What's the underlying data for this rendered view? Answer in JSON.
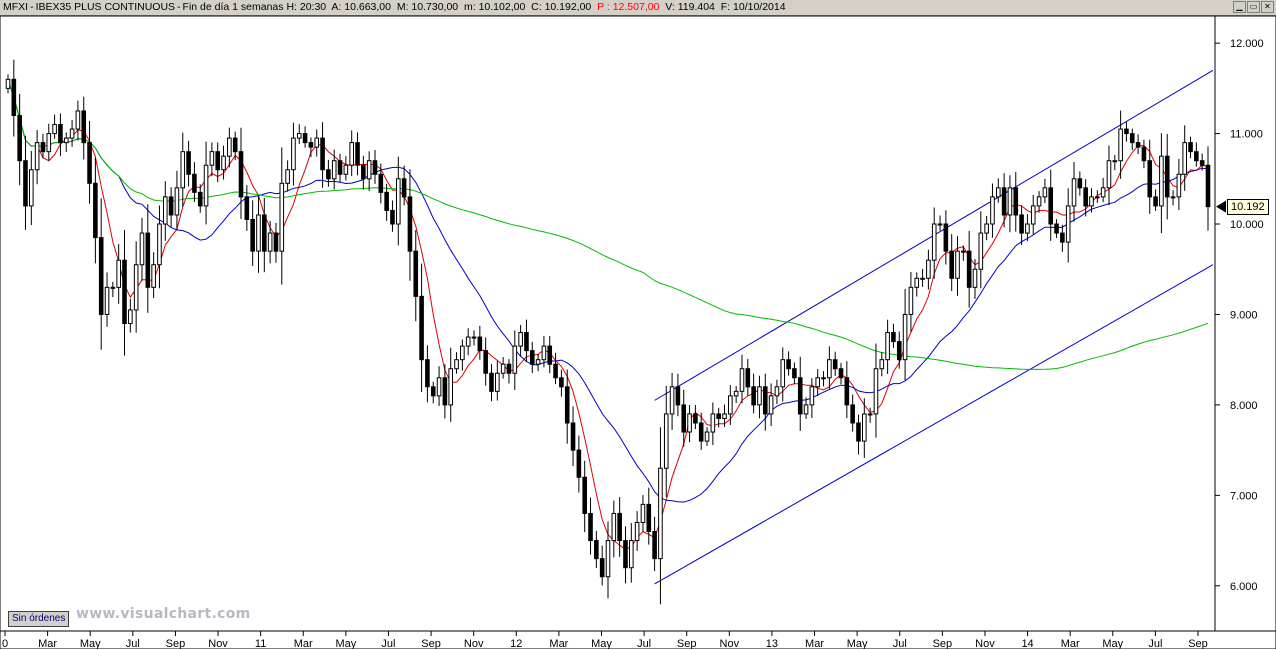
{
  "window": {
    "symbol": "MFXI",
    "name": "IBEX35 PLUS CONTINUOUS",
    "period": "Fin de día 1 semanas",
    "time_label": "H:",
    "time": "20:30",
    "open_label": "A:",
    "open": "10.663,00",
    "high_label": "M:",
    "high": "10.730,00",
    "low_label": "m:",
    "low": "10.102,00",
    "close_label": "C:",
    "close": "10.192,00",
    "prev_label": "P :",
    "prev": "12.507,00",
    "volume_label": "V:",
    "volume": "119.404",
    "date_label": "F:",
    "date": "10/10/2014"
  },
  "status_label": "Sin órdenes",
  "watermark": "www.visualchart.com",
  "last_price_label": "10.192",
  "colors": {
    "candle": "#000000",
    "ma_short": "#e00000",
    "ma_mid": "#0000cc",
    "ma_long": "#00bb00",
    "channel": "#0000cc",
    "background": "#ffffff"
  },
  "chart_data": {
    "type": "candlestick",
    "ylim": [
      5500,
      12300
    ],
    "y_ticks": [
      6000,
      7000,
      8000,
      9000,
      10000,
      11000,
      12000
    ],
    "y_tick_labels": [
      "6.000",
      "7.000",
      "8.000",
      "9.000",
      "10.000",
      "11.000",
      "12.000"
    ],
    "x_tick_labels": [
      "0",
      "Mar",
      "May",
      "Jul",
      "Sep",
      "Nov",
      "11",
      "Mar",
      "May",
      "Jul",
      "Sep",
      "Nov",
      "12",
      "Mar",
      "May",
      "Jul",
      "Sep",
      "Nov",
      "13",
      "Mar",
      "May",
      "Jul",
      "Sep",
      "Nov",
      "14",
      "Mar",
      "May",
      "Jul",
      "Sep"
    ],
    "closes": [
      11600,
      11200,
      10700,
      10200,
      10600,
      10900,
      10800,
      11000,
      11100,
      10900,
      10950,
      11050,
      11250,
      10900,
      10450,
      9850,
      9000,
      9300,
      9300,
      9600,
      8900,
      9050,
      9550,
      9900,
      9300,
      9550,
      10000,
      10300,
      10100,
      10400,
      10800,
      10550,
      10350,
      10200,
      10650,
      10800,
      10600,
      10750,
      10950,
      10800,
      10300,
      10050,
      9700,
      10100,
      9700,
      9900,
      9700,
      10450,
      10600,
      10950,
      11000,
      10900,
      10850,
      10950,
      10600,
      10500,
      10700,
      10550,
      10650,
      10900,
      10650,
      10500,
      10700,
      10550,
      10350,
      10150,
      10000,
      10500,
      10300,
      9700,
      9200,
      8500,
      8200,
      8100,
      8300,
      8000,
      8400,
      8500,
      8650,
      8750,
      8750,
      8600,
      8350,
      8150,
      8350,
      8450,
      8350,
      8650,
      8800,
      8600,
      8450,
      8500,
      8650,
      8450,
      8300,
      8200,
      7800,
      7500,
      7200,
      6800,
      6500,
      6300,
      6100,
      6500,
      6800,
      6500,
      6200,
      6500,
      6700,
      6900,
      6600,
      6300,
      7300,
      7900,
      8200,
      8000,
      7700,
      7900,
      7800,
      7600,
      7700,
      7900,
      7850,
      7900,
      8100,
      8150,
      8400,
      8200,
      8000,
      8200,
      7900,
      8100,
      8200,
      8500,
      8400,
      8300,
      7900,
      8000,
      8200,
      8300,
      8300,
      8500,
      8400,
      8300,
      8000,
      7800,
      7600,
      7900,
      7900,
      8400,
      8500,
      8800,
      8700,
      8500,
      9000,
      9300,
      9400,
      9400,
      9600,
      10000,
      10000,
      9700,
      9400,
      9700,
      9700,
      9300,
      9500,
      9900,
      10000,
      10300,
      10400,
      10100,
      10400,
      10100,
      9900,
      10000,
      10200,
      10300,
      10400,
      10000,
      9900,
      9800,
      10200,
      10500,
      10400,
      10200,
      10300,
      10300,
      10400,
      10700,
      10700,
      11050,
      11000,
      10900,
      10850,
      10700,
      10300,
      10200,
      10750,
      10300,
      10300,
      10550,
      10900,
      10800,
      10700,
      10650,
      10192
    ]
  }
}
